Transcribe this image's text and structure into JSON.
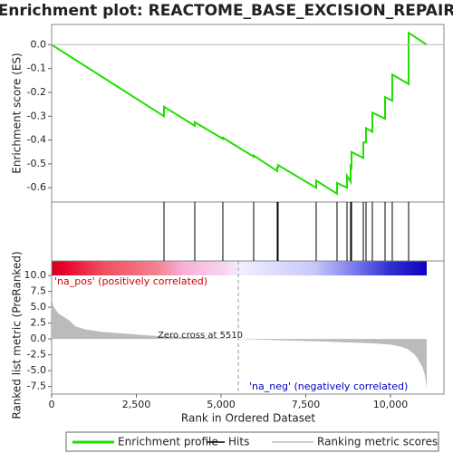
{
  "chart_data": [
    {
      "type": "line",
      "title": "Enrichment plot: REACTOME_BASE_EXCISION_REPAIR",
      "y_label": "Enrichment score (ES)",
      "xlim": [
        0,
        11578
      ],
      "ylim": [
        -0.66,
        0.085
      ],
      "yticks": [
        {
          "value": 0,
          "label": "0.0"
        },
        -0.1,
        -0.2,
        -0.3,
        -0.4,
        -0.5,
        -0.6
      ],
      "grid": false,
      "series": [
        {
          "name": "Enrichment profile",
          "color": "#22dd00",
          "x": [
            0,
            3316,
            3316,
            4225,
            4225,
            5053,
            5053,
            5963,
            5963,
            6658,
            6658,
            6684,
            6684,
            7807,
            7807,
            8422,
            8422,
            8717,
            8717,
            8824,
            8824,
            8850,
            8850,
            9198,
            9198,
            9278,
            9278,
            9465,
            9465,
            9840,
            9840,
            10053,
            10053,
            10535,
            10535,
            11070
          ],
          "values": [
            0,
            -0.3,
            -0.26,
            -0.34,
            -0.325,
            -0.395,
            -0.39,
            -0.47,
            -0.465,
            -0.53,
            -0.515,
            -0.515,
            -0.505,
            -0.6,
            -0.57,
            -0.625,
            -0.58,
            -0.6,
            -0.55,
            -0.575,
            -0.51,
            -0.515,
            -0.45,
            -0.475,
            -0.41,
            -0.41,
            -0.35,
            -0.365,
            -0.285,
            -0.31,
            -0.22,
            -0.235,
            -0.125,
            -0.165,
            0.05,
            0.0
          ]
        }
      ]
    },
    {
      "type": "rug",
      "xlim": [
        0,
        11578
      ],
      "series": [
        {
          "name": "Hits",
          "color": "#000000",
          "x": [
            3316,
            4225,
            5053,
            5963,
            6658,
            6684,
            7807,
            8422,
            8717,
            8824,
            8850,
            9198,
            9278,
            9465,
            9840,
            10053,
            10535
          ]
        }
      ]
    },
    {
      "type": "area",
      "x_label": "Rank in Ordered Dataset",
      "y_label": "Ranked list metric (PreRanked)",
      "xlim": [
        0,
        11578
      ],
      "ylim": [
        -8.7,
        12.3
      ],
      "xticks": [
        0,
        {
          "value": 2500,
          "label": "2,500"
        },
        {
          "value": 5000,
          "label": "5,000"
        },
        {
          "value": 7500,
          "label": "7,500"
        },
        {
          "value": 10000,
          "label": "10,000"
        }
      ],
      "yticks": [
        {
          "value": 10,
          "label": "10.0"
        },
        7.5,
        {
          "value": 5,
          "label": "5.0"
        },
        2.5,
        {
          "value": 0,
          "label": "0.0"
        },
        -2.5,
        {
          "value": -5,
          "label": "-5.0"
        },
        -7.5
      ],
      "series": [
        {
          "name": "Ranking metric scores",
          "color": "#bbbbbb",
          "x": [
            0,
            50,
            200,
            500,
            700,
            1000,
            1500,
            2000,
            3000,
            4000,
            5000,
            5510,
            6000,
            7000,
            8000,
            9000,
            9500,
            10000,
            10300,
            10500,
            10700,
            10800,
            10950,
            11020,
            11070
          ],
          "values": [
            6.5,
            5.2,
            4.0,
            3.0,
            2.0,
            1.5,
            1.1,
            0.9,
            0.5,
            0.3,
            0.1,
            0,
            -0.1,
            -0.25,
            -0.4,
            -0.6,
            -0.7,
            -0.9,
            -1.2,
            -1.6,
            -2.4,
            -3.1,
            -4.5,
            -5.8,
            -7.8
          ]
        }
      ],
      "annotations": [
        {
          "text": "Zero cross at 5510",
          "x": 5510
        }
      ],
      "pos_label": "'na_pos' (positively correlated)",
      "neg_label": "'na_neg' (negatively correlated)"
    }
  ]
}
